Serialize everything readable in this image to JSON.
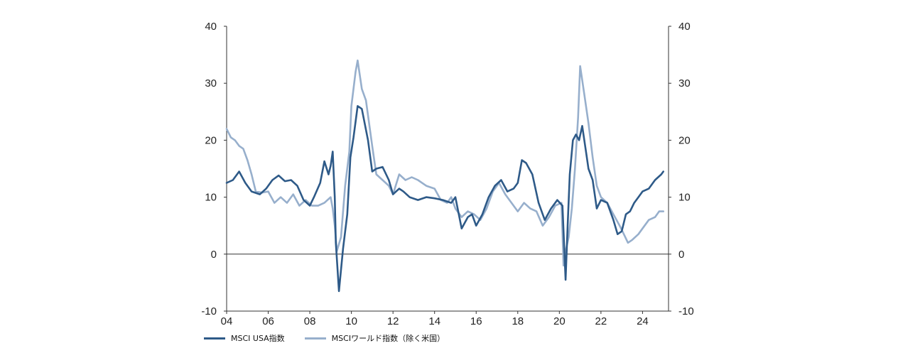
{
  "chart_data": {
    "type": "line",
    "title": "",
    "xlabel": "",
    "ylabel": "",
    "x_tick_labels": [
      "04",
      "06",
      "08",
      "10",
      "12",
      "14",
      "16",
      "18",
      "20",
      "22",
      "24"
    ],
    "y_tick_labels": [
      "40",
      "30",
      "20",
      "10",
      "0",
      "-10"
    ],
    "xlim": [
      2004.0,
      2025.25
    ],
    "ylim": [
      -10,
      40
    ],
    "grid": false,
    "zero_line": true,
    "legend_position": "bottom-left",
    "series": [
      {
        "name": "MSCI USA指数",
        "color": "#2e5a88",
        "x": [
          2004.0,
          2004.3,
          2004.6,
          2004.9,
          2005.2,
          2005.6,
          2005.9,
          2006.2,
          2006.5,
          2006.8,
          2007.1,
          2007.4,
          2007.7,
          2008.0,
          2008.2,
          2008.5,
          2008.7,
          2008.9,
          2009.0,
          2009.1,
          2009.2,
          2009.25,
          2009.4,
          2009.6,
          2009.8,
          2009.95,
          2010.1,
          2010.3,
          2010.5,
          2010.8,
          2011.0,
          2011.2,
          2011.5,
          2011.8,
          2012.0,
          2012.3,
          2012.5,
          2012.8,
          2013.2,
          2013.6,
          2014.0,
          2014.4,
          2014.8,
          2015.0,
          2015.3,
          2015.6,
          2015.8,
          2016.0,
          2016.3,
          2016.6,
          2016.9,
          2017.2,
          2017.5,
          2017.8,
          2018.0,
          2018.2,
          2018.4,
          2018.7,
          2019.0,
          2019.3,
          2019.6,
          2019.9,
          2020.15,
          2020.3,
          2020.4,
          2020.5,
          2020.65,
          2020.8,
          2020.95,
          2021.1,
          2021.3,
          2021.4,
          2021.6,
          2021.8,
          2022.0,
          2022.3,
          2022.6,
          2022.8,
          2023.0,
          2023.2,
          2023.4,
          2023.6,
          2023.8,
          2024.0,
          2024.3,
          2024.6,
          2024.9,
          2025.0
        ],
        "values": [
          12.5,
          13.0,
          14.5,
          12.5,
          11.0,
          10.5,
          11.5,
          13.0,
          13.8,
          12.8,
          13.0,
          12.0,
          9.5,
          8.5,
          10.0,
          12.5,
          16.3,
          14.0,
          15.5,
          18.0,
          10.0,
          2.0,
          -6.5,
          1.0,
          7.0,
          17.0,
          20.5,
          26.0,
          25.5,
          20.0,
          14.5,
          15.0,
          15.3,
          13.0,
          10.5,
          11.5,
          11.0,
          10.0,
          9.5,
          10.0,
          9.8,
          9.5,
          9.0,
          10.0,
          4.5,
          6.5,
          7.0,
          5.0,
          7.0,
          10.0,
          12.0,
          13.0,
          11.0,
          11.5,
          12.5,
          16.5,
          16.0,
          14.0,
          9.0,
          6.0,
          8.0,
          9.5,
          8.5,
          -4.5,
          5.0,
          14.0,
          20.0,
          21.0,
          20.0,
          22.5,
          17.5,
          15.0,
          13.0,
          8.0,
          9.5,
          9.0,
          6.0,
          3.5,
          4.0,
          7.0,
          7.5,
          9.0,
          10.0,
          11.0,
          11.5,
          13.0,
          14.0,
          14.5
        ]
      },
      {
        "name": "MSCIワールド指数（除く米国）",
        "color": "#97afcc",
        "x": [
          2004.0,
          2004.2,
          2004.4,
          2004.6,
          2004.8,
          2005.0,
          2005.2,
          2005.4,
          2005.7,
          2006.0,
          2006.3,
          2006.6,
          2006.9,
          2007.2,
          2007.5,
          2007.8,
          2008.1,
          2008.4,
          2008.7,
          2009.0,
          2009.1,
          2009.2,
          2009.3,
          2009.5,
          2009.7,
          2009.9,
          2010.0,
          2010.2,
          2010.3,
          2010.5,
          2010.7,
          2011.0,
          2011.2,
          2011.5,
          2011.8,
          2012.0,
          2012.3,
          2012.6,
          2012.9,
          2013.2,
          2013.6,
          2014.0,
          2014.3,
          2014.6,
          2014.8,
          2015.0,
          2015.3,
          2015.6,
          2015.9,
          2016.2,
          2016.5,
          2016.8,
          2017.1,
          2017.4,
          2017.7,
          2018.0,
          2018.3,
          2018.6,
          2018.9,
          2019.2,
          2019.5,
          2019.8,
          2020.1,
          2020.2,
          2020.3,
          2020.45,
          2020.6,
          2020.75,
          2020.9,
          2021.0,
          2021.2,
          2021.4,
          2021.6,
          2021.8,
          2022.0,
          2022.3,
          2022.6,
          2022.9,
          2023.1,
          2023.3,
          2023.5,
          2023.8,
          2024.0,
          2024.3,
          2024.6,
          2024.8,
          2025.0
        ],
        "values": [
          22.0,
          20.5,
          20.0,
          19.0,
          18.5,
          16.5,
          14.0,
          11.0,
          10.8,
          11.0,
          9.0,
          10.0,
          9.0,
          10.5,
          8.5,
          9.5,
          8.5,
          8.5,
          9.0,
          10.0,
          8.0,
          5.0,
          0.5,
          3.0,
          12.0,
          18.0,
          26.0,
          32.0,
          34.0,
          29.0,
          27.0,
          19.0,
          14.0,
          13.0,
          12.0,
          10.5,
          14.0,
          13.0,
          13.5,
          13.0,
          12.0,
          11.5,
          9.5,
          9.0,
          10.0,
          8.0,
          6.5,
          7.5,
          7.0,
          6.0,
          8.0,
          11.0,
          12.5,
          10.5,
          9.0,
          7.5,
          9.0,
          8.0,
          7.5,
          5.0,
          6.5,
          8.5,
          9.0,
          -2.0,
          0.5,
          3.0,
          8.0,
          15.0,
          24.0,
          33.0,
          28.0,
          23.0,
          17.0,
          12.0,
          10.0,
          9.0,
          7.0,
          5.0,
          3.5,
          2.0,
          2.5,
          3.5,
          4.5,
          6.0,
          6.5,
          7.5,
          7.5
        ]
      }
    ]
  }
}
